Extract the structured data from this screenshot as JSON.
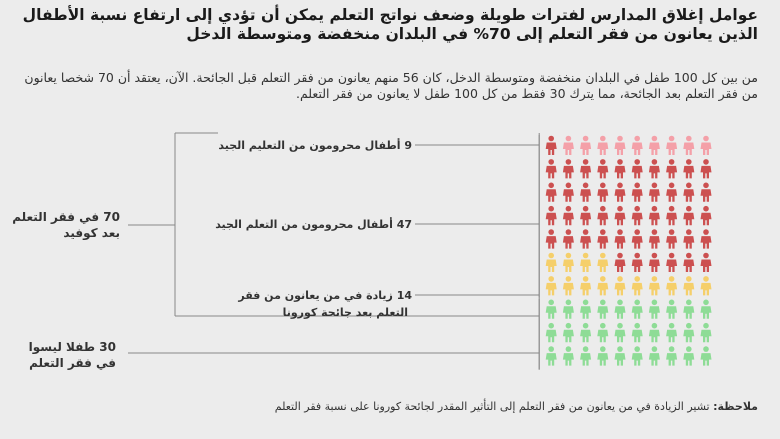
{
  "title": "عوامل إغلاق المدارس لفترات طويلة وضعف نواتج التعلم يمكن أن تؤدي إلى ارتفاع نسبة الأطفال الذين يعانون من فقر التعلم إلى 70% في البلدان منخفضة ومتوسطة الدخل",
  "subtitle": "من بين كل 100 طفل في البلدان منخفضة ومتوسطة الدخل، كان 56 منهم يعانون من فقر التعلم قبل الجائحة. الآن، يعتقد أن 70 شخصا يعانون من فقر التعلم بعد الجائحة، مما يترك 30 فقط من كل 100 طفل لا يعانون من فقر التعلم.",
  "labels": {
    "seg1": "9 أطفال محرومون من التعليم الجيد",
    "seg2": "47 أطفال محرومون من التعلم الجيد",
    "seg3_line1": "14 زيادة في من يعانون من فقر",
    "seg3_line2": "التعلم بعد جائحة كورونا",
    "group_total_line1": "70 في فقر التعلم",
    "group_total_line2": "بعد كوفيد",
    "group_not_line1": "30 طفلا ليسوا",
    "group_not_line2": "في فقر التعلم"
  },
  "note": {
    "prefix": "ملاحظة:",
    "text": "تشير الزيادة في من يعانون من فقر التعلم إلى التأثير المقدر لجائحة كورونا على نسبة فقر التعلم"
  },
  "chart_data": {
    "type": "pictogram",
    "total": 100,
    "columns": 10,
    "segments": [
      {
        "label": "9 أطفال محرومون من التعليم الجيد",
        "value": 9,
        "color": "#f4a0a8"
      },
      {
        "label": "47 أطفال محرومون من التعلم الجيد",
        "value": 47,
        "color": "#cc5050"
      },
      {
        "label": "14 زيادة في من يعانون من فقر التعلم بعد جائحة كورونا",
        "value": 14,
        "color": "#f5cf6a"
      },
      {
        "label": "30 طفلا ليسوا في فقر التعلم",
        "value": 30,
        "color": "#8edc96"
      }
    ],
    "groups": [
      {
        "label": "70 في فقر التعلم بعد كوفيد",
        "value": 70
      },
      {
        "label": "30 طفلا ليسوا في فقر التعلم",
        "value": 30
      }
    ]
  }
}
